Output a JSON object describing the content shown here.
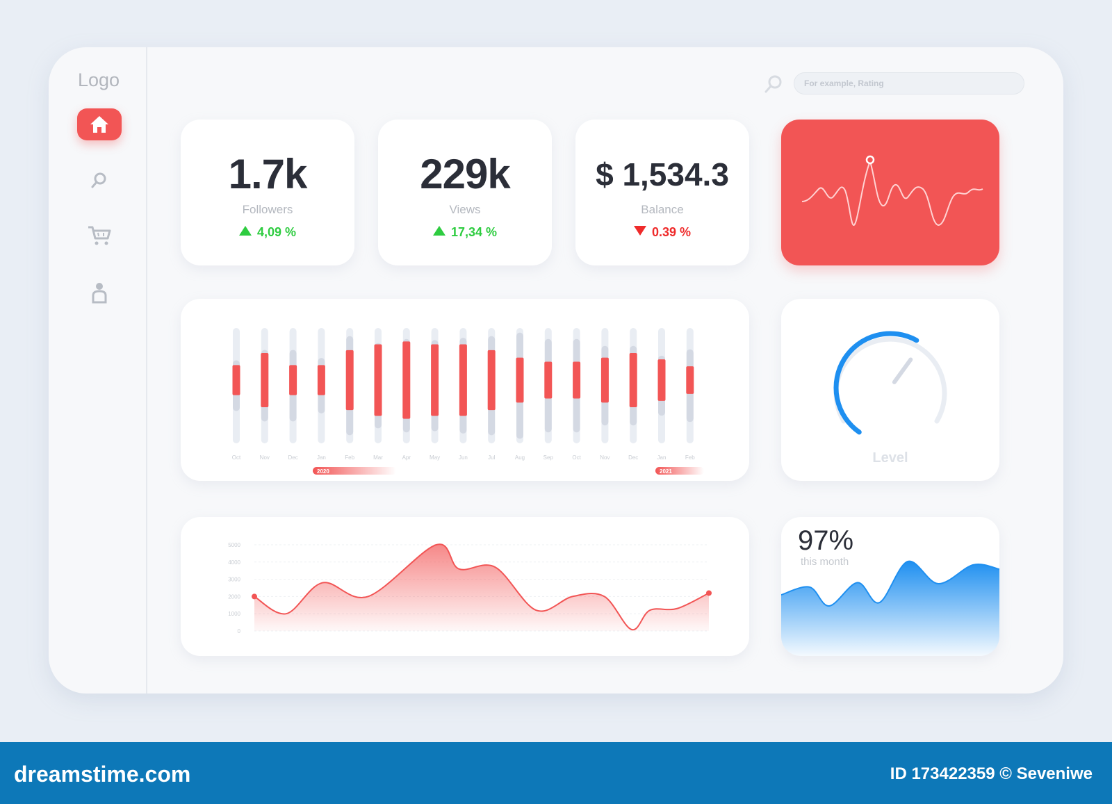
{
  "sidebar": {
    "logo": "Logo",
    "items": [
      {
        "name": "home",
        "active": true
      },
      {
        "name": "search",
        "active": false
      },
      {
        "name": "cart",
        "active": false
      },
      {
        "name": "profile",
        "active": false
      }
    ]
  },
  "search": {
    "placeholder": "For example, Rating"
  },
  "stats": [
    {
      "value": "1.7k",
      "label": "Followers",
      "delta": "4,09 %",
      "direction": "up"
    },
    {
      "value": "229k",
      "label": "Views",
      "delta": "17,34 %",
      "direction": "up"
    },
    {
      "value": "$ 1,534.3",
      "label": "Balance",
      "delta": "0.39 %",
      "direction": "down"
    }
  ],
  "gauge": {
    "label": "Level",
    "level_fraction": 0.6
  },
  "month": {
    "percent": "97%",
    "caption": "this month"
  },
  "colors": {
    "accent": "#f25555",
    "up": "#2ecc40",
    "down": "#ef2b2b",
    "blue": "#1e8ff0",
    "bar_bg": "#e9edf3",
    "bar_mid": "#d4d9e3"
  },
  "chart_data": [
    {
      "type": "bar",
      "categories": [
        "Oct",
        "Nov",
        "Dec",
        "Jan",
        "Feb",
        "Mar",
        "Apr",
        "May",
        "Jun",
        "Jul",
        "Aug",
        "Sep",
        "Oct",
        "Nov",
        "Dec",
        "Jan",
        "Feb"
      ],
      "series": [
        {
          "values": [
            0.26,
            0.47,
            0.26,
            0.26,
            0.52,
            0.62,
            0.67,
            0.62,
            0.62,
            0.52,
            0.39,
            0.32,
            0.32,
            0.39,
            0.47,
            0.36,
            0.24
          ]
        },
        {
          "values": [
            0.44,
            0.62,
            0.62,
            0.48,
            0.86,
            0.74,
            0.81,
            0.79,
            0.83,
            0.86,
            0.92,
            0.81,
            0.81,
            0.69,
            0.69,
            0.52,
            0.63
          ]
        }
      ],
      "year_markers": [
        {
          "label": "2020",
          "at": "Jan"
        },
        {
          "label": "2021",
          "at": "Jan"
        }
      ]
    },
    {
      "type": "area",
      "y_ticks": [
        "0",
        "1000",
        "2000",
        "3000",
        "4000",
        "5000"
      ],
      "ylim": [
        0,
        5000
      ],
      "x": [
        0,
        0.07,
        0.15,
        0.25,
        0.4,
        0.45,
        0.53,
        0.62,
        0.7,
        0.77,
        0.83,
        0.87,
        0.93,
        1.0
      ],
      "values": [
        2000,
        1000,
        2800,
        2000,
        5000,
        3600,
        3700,
        1200,
        2000,
        2000,
        0,
        1200,
        1300,
        2200
      ]
    },
    {
      "type": "area",
      "x": [
        0,
        0.13,
        0.22,
        0.35,
        0.45,
        0.58,
        0.72,
        0.88,
        1.0
      ],
      "values": [
        0.55,
        0.62,
        0.45,
        0.66,
        0.48,
        0.85,
        0.65,
        0.82,
        0.78
      ]
    }
  ],
  "footer": {
    "brand": "dreamstime.com",
    "credit": "ID 173422359 © Seveniwe"
  }
}
